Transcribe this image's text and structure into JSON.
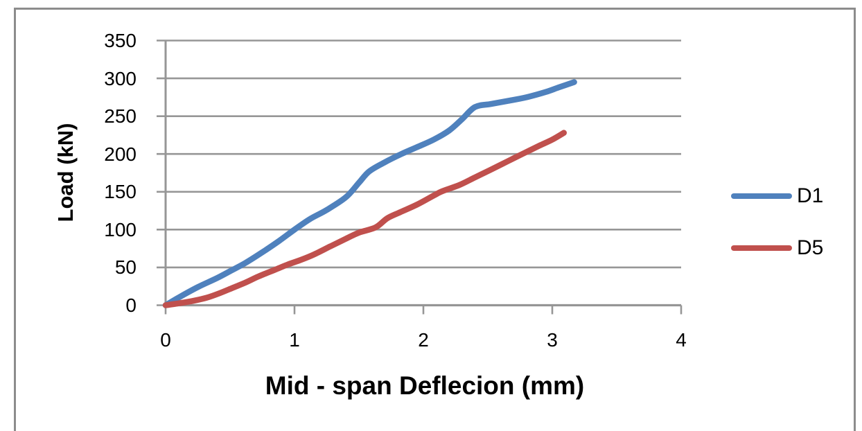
{
  "window": {
    "background": "#FFFFFF",
    "frame_border_color": "#8C8C8C"
  },
  "chart_data": {
    "type": "line",
    "title": "",
    "xlabel": "Mid - span Deflecion (mm)",
    "ylabel": "Load (kN)",
    "xlim": [
      0,
      4
    ],
    "ylim": [
      0,
      350
    ],
    "x_ticks": [
      "0",
      "1",
      "2",
      "3",
      "4"
    ],
    "y_ticks": [
      "350",
      "300",
      "250",
      "200",
      "150",
      "100",
      "50",
      "0"
    ],
    "grid": "horizontal gridlines every 50 kN, gray",
    "gridline_color": "#969696",
    "axis_color": "#969696",
    "legend_position": "right-middle, no border",
    "series": [
      {
        "name": "D1",
        "color": "#4F81BD",
        "points": [
          [
            0,
            0
          ],
          [
            0.12,
            12
          ],
          [
            0.25,
            24
          ],
          [
            0.4,
            36
          ],
          [
            0.5,
            45
          ],
          [
            0.62,
            56
          ],
          [
            0.75,
            70
          ],
          [
            0.88,
            85
          ],
          [
            1.0,
            100
          ],
          [
            1.12,
            114
          ],
          [
            1.25,
            126
          ],
          [
            1.4,
            143
          ],
          [
            1.5,
            162
          ],
          [
            1.58,
            177
          ],
          [
            1.7,
            189
          ],
          [
            1.83,
            200
          ],
          [
            1.95,
            209
          ],
          [
            2.08,
            219
          ],
          [
            2.2,
            231
          ],
          [
            2.3,
            246
          ],
          [
            2.4,
            262
          ],
          [
            2.52,
            266
          ],
          [
            2.65,
            270
          ],
          [
            2.8,
            275
          ],
          [
            2.95,
            282
          ],
          [
            3.05,
            288
          ],
          [
            3.17,
            295
          ]
        ]
      },
      {
        "name": "D5",
        "color": "#C0504D",
        "points": [
          [
            0,
            0
          ],
          [
            0.12,
            3
          ],
          [
            0.22,
            6
          ],
          [
            0.32,
            10
          ],
          [
            0.42,
            16
          ],
          [
            0.52,
            23
          ],
          [
            0.62,
            30
          ],
          [
            0.72,
            38
          ],
          [
            0.85,
            47
          ],
          [
            0.95,
            54
          ],
          [
            1.05,
            60
          ],
          [
            1.15,
            67
          ],
          [
            1.28,
            78
          ],
          [
            1.4,
            88
          ],
          [
            1.5,
            96
          ],
          [
            1.63,
            103
          ],
          [
            1.72,
            115
          ],
          [
            1.82,
            123
          ],
          [
            1.95,
            133
          ],
          [
            2.08,
            145
          ],
          [
            2.15,
            151
          ],
          [
            2.28,
            159
          ],
          [
            2.4,
            169
          ],
          [
            2.52,
            179
          ],
          [
            2.65,
            190
          ],
          [
            2.78,
            201
          ],
          [
            2.9,
            211
          ],
          [
            3.0,
            219
          ],
          [
            3.09,
            228
          ]
        ]
      }
    ]
  }
}
